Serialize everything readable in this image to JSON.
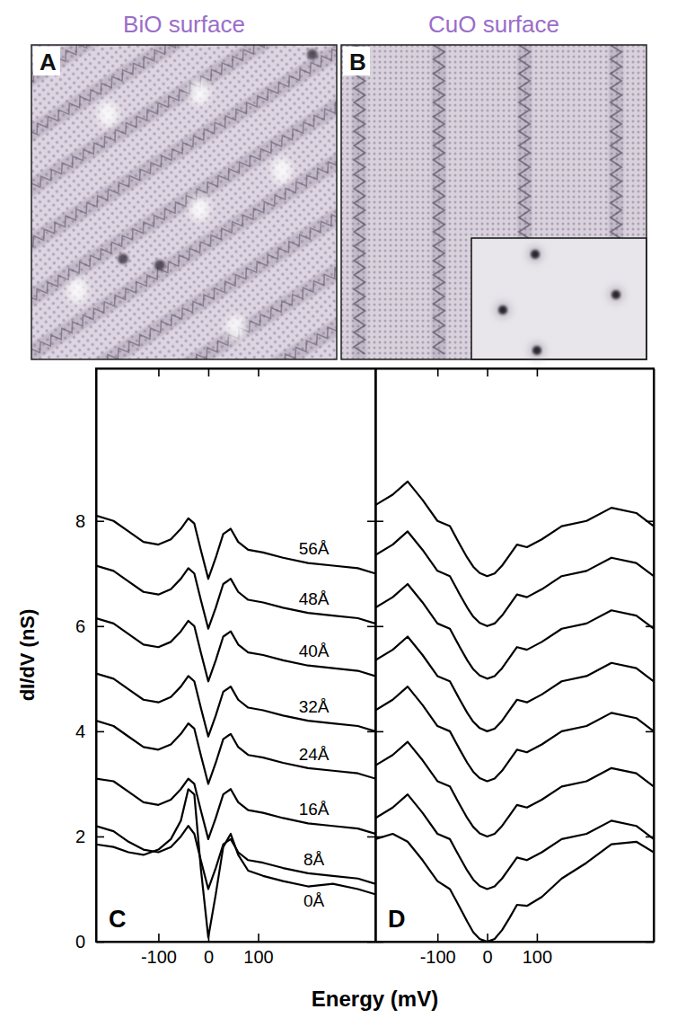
{
  "images": [
    {
      "label": "A",
      "title": "BiO surface"
    },
    {
      "label": "B",
      "title": "CuO surface"
    }
  ],
  "figure": {
    "xlabel": "Energy (mV)",
    "ylabel": "dI/dV (nS)"
  },
  "chart_data": [
    {
      "type": "line",
      "label": "C",
      "color": "#000000",
      "x": [
        -225,
        -190,
        -160,
        -130,
        -100,
        -75,
        -55,
        -40,
        -28,
        -15,
        0,
        15,
        30,
        45,
        60,
        80,
        110,
        150,
        200,
        250,
        300,
        335
      ],
      "xlim": [
        -225,
        335
      ],
      "xticks": [
        -100,
        0,
        100
      ],
      "ylim": [
        0,
        10.9
      ],
      "yticks": [
        0,
        2,
        4,
        6,
        8
      ],
      "series": [
        {
          "name": "0Å",
          "values": [
            1.85,
            1.8,
            1.7,
            1.65,
            1.75,
            1.95,
            2.3,
            2.9,
            2.8,
            1.4,
            0.08,
            0.9,
            1.8,
            2.05,
            1.65,
            1.35,
            1.25,
            1.15,
            1.05,
            1.1,
            1.0,
            0.9
          ]
        },
        {
          "name": "8Å",
          "values": [
            2.2,
            2.1,
            1.9,
            1.75,
            1.7,
            1.8,
            2.0,
            2.2,
            2.05,
            1.55,
            1.0,
            1.4,
            1.85,
            1.95,
            1.7,
            1.55,
            1.5,
            1.4,
            1.3,
            1.25,
            1.2,
            1.1
          ]
        },
        {
          "name": "16Å",
          "values": [
            3.1,
            3.05,
            2.85,
            2.65,
            2.6,
            2.7,
            2.9,
            3.1,
            3.0,
            2.5,
            1.95,
            2.35,
            2.8,
            2.9,
            2.65,
            2.5,
            2.45,
            2.35,
            2.25,
            2.2,
            2.15,
            2.05
          ]
        },
        {
          "name": "24Å",
          "values": [
            4.2,
            4.1,
            3.9,
            3.7,
            3.65,
            3.75,
            3.95,
            4.15,
            4.05,
            3.55,
            3.0,
            3.4,
            3.85,
            3.95,
            3.7,
            3.55,
            3.5,
            3.4,
            3.3,
            3.25,
            3.2,
            3.1
          ]
        },
        {
          "name": "32Å",
          "values": [
            5.1,
            5.0,
            4.8,
            4.6,
            4.55,
            4.65,
            4.85,
            5.05,
            4.95,
            4.45,
            3.9,
            4.3,
            4.75,
            4.85,
            4.6,
            4.45,
            4.4,
            4.3,
            4.2,
            4.15,
            4.1,
            4.0
          ]
        },
        {
          "name": "40Å",
          "values": [
            6.15,
            6.05,
            5.85,
            5.65,
            5.6,
            5.7,
            5.9,
            6.1,
            6.0,
            5.5,
            4.95,
            5.35,
            5.8,
            5.9,
            5.65,
            5.5,
            5.45,
            5.35,
            5.25,
            5.2,
            5.15,
            5.05
          ]
        },
        {
          "name": "48Å",
          "values": [
            7.15,
            7.05,
            6.85,
            6.65,
            6.6,
            6.7,
            6.9,
            7.1,
            7.0,
            6.5,
            5.95,
            6.35,
            6.8,
            6.9,
            6.65,
            6.5,
            6.45,
            6.35,
            6.25,
            6.2,
            6.15,
            6.05
          ]
        },
        {
          "name": "56Å",
          "values": [
            8.1,
            8.0,
            7.8,
            7.6,
            7.55,
            7.65,
            7.85,
            8.05,
            7.95,
            7.45,
            6.9,
            7.3,
            7.75,
            7.85,
            7.6,
            7.45,
            7.4,
            7.3,
            7.2,
            7.15,
            7.1,
            7.0
          ]
        }
      ]
    },
    {
      "type": "line",
      "label": "D",
      "color": "#000000",
      "tick_labels": "x",
      "x": [
        -225,
        -190,
        -160,
        -130,
        -100,
        -75,
        -55,
        -40,
        -28,
        -15,
        0,
        15,
        30,
        45,
        60,
        80,
        110,
        150,
        200,
        250,
        300,
        335
      ],
      "xlim": [
        -225,
        335
      ],
      "xticks": [
        -100,
        0,
        100
      ],
      "ylim": [
        0,
        10.9
      ],
      "yticks": [
        0,
        2,
        4,
        6,
        8
      ],
      "series": [
        {
          "values": [
            1.95,
            2.05,
            1.9,
            1.55,
            1.15,
            1.0,
            0.65,
            0.38,
            0.18,
            0.05,
            0.0,
            0.05,
            0.22,
            0.45,
            0.7,
            0.68,
            0.85,
            1.2,
            1.5,
            1.85,
            1.9,
            1.7
          ]
        },
        {
          "values": [
            2.35,
            2.55,
            2.8,
            2.45,
            2.05,
            1.95,
            1.6,
            1.35,
            1.18,
            1.06,
            1.0,
            1.05,
            1.2,
            1.4,
            1.6,
            1.55,
            1.7,
            1.95,
            2.05,
            2.3,
            2.2,
            1.95
          ]
        },
        {
          "values": [
            3.35,
            3.55,
            3.8,
            3.45,
            3.05,
            2.95,
            2.6,
            2.35,
            2.18,
            2.06,
            2.0,
            2.05,
            2.2,
            2.4,
            2.6,
            2.55,
            2.7,
            2.95,
            3.05,
            3.3,
            3.2,
            2.95
          ]
        },
        {
          "values": [
            4.4,
            4.6,
            4.85,
            4.5,
            4.1,
            4.0,
            3.65,
            3.4,
            3.23,
            3.11,
            3.05,
            3.1,
            3.25,
            3.45,
            3.65,
            3.6,
            3.75,
            4.0,
            4.1,
            4.35,
            4.25,
            4.0
          ]
        },
        {
          "values": [
            5.35,
            5.55,
            5.8,
            5.45,
            5.05,
            4.95,
            4.6,
            4.35,
            4.18,
            4.06,
            4.0,
            4.05,
            4.2,
            4.4,
            4.6,
            4.55,
            4.7,
            4.95,
            5.05,
            5.3,
            5.2,
            4.95
          ]
        },
        {
          "values": [
            6.35,
            6.55,
            6.8,
            6.45,
            6.05,
            5.95,
            5.6,
            5.35,
            5.18,
            5.06,
            5.0,
            5.05,
            5.2,
            5.4,
            5.6,
            5.55,
            5.7,
            5.95,
            6.05,
            6.3,
            6.2,
            5.95
          ]
        },
        {
          "values": [
            7.35,
            7.55,
            7.8,
            7.45,
            7.05,
            6.95,
            6.6,
            6.35,
            6.18,
            6.06,
            6.0,
            6.05,
            6.2,
            6.4,
            6.6,
            6.55,
            6.7,
            6.95,
            7.05,
            7.3,
            7.2,
            6.95
          ]
        },
        {
          "values": [
            8.3,
            8.5,
            8.75,
            8.4,
            8.0,
            7.9,
            7.55,
            7.3,
            7.13,
            7.01,
            6.95,
            7.0,
            7.15,
            7.35,
            7.55,
            7.5,
            7.65,
            7.9,
            8.0,
            8.25,
            8.15,
            7.9
          ]
        }
      ]
    }
  ]
}
